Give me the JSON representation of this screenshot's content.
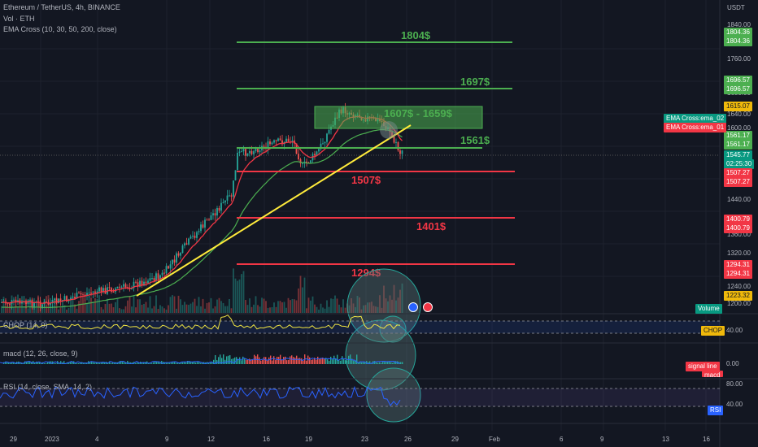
{
  "header": {
    "symbol_line": "Ethereum / TetherUS, 4h, BINANCE",
    "volume_line": "Vol · ETH",
    "ema_line": "EMA Cross (10, 30, 50, 200, close)"
  },
  "price_axis": {
    "unit": "USDT",
    "ticks": [
      "1840.00",
      "1760.00",
      "1680.00",
      "1640.00",
      "1600.00",
      "1520.00",
      "1480.00",
      "1440.00",
      "1400.00",
      "1360.00",
      "1320.00",
      "1280.00",
      "1240.00",
      "1200.00"
    ]
  },
  "price_tags": [
    {
      "text": "1804.36",
      "color": "#4caf50"
    },
    {
      "text": "1804.36",
      "color": "#4caf50"
    },
    {
      "text": "1696.57",
      "color": "#4caf50"
    },
    {
      "text": "1696.57",
      "color": "#4caf50"
    },
    {
      "text": "1615.07",
      "color": "#f0b90b"
    },
    {
      "text": "1561.17",
      "color": "#4caf50"
    },
    {
      "text": "1561.17",
      "color": "#4caf50"
    },
    {
      "text": "1545.77",
      "color": "#089981"
    },
    {
      "text": "02:25:30",
      "color": "#089981"
    },
    {
      "text": "1507.27",
      "color": "#f23645"
    },
    {
      "text": "1507.27",
      "color": "#f23645"
    },
    {
      "text": "1400.79",
      "color": "#f23645"
    },
    {
      "text": "1400.79",
      "color": "#f23645"
    },
    {
      "text": "1294.31",
      "color": "#f23645"
    },
    {
      "text": "1294.31",
      "color": "#f23645"
    },
    {
      "text": "1223.32",
      "color": "#f0b90b"
    }
  ],
  "ema_tags": [
    {
      "text": "EMA Cross:ema_02",
      "color": "#089981"
    },
    {
      "text": "EMA Cross:ema_01",
      "color": "#f23645"
    }
  ],
  "levels": [
    {
      "label": "1804$",
      "color": "#4caf50"
    },
    {
      "label": "1697$",
      "color": "#4caf50"
    },
    {
      "label": "1561$",
      "color": "#4caf50"
    },
    {
      "label": "1507$",
      "color": "#f23645"
    },
    {
      "label": "1401$",
      "color": "#f23645"
    },
    {
      "label": "1294$",
      "color": "#f23645"
    }
  ],
  "zone_label": "1607$ - 1659$",
  "volume_badge": "Volume",
  "indicators": {
    "chop": {
      "title": "CHOP (14, 0)",
      "badge": "CHOP",
      "tick": "40.00"
    },
    "macd": {
      "title": "macd (12, 26, close, 9)",
      "badges": [
        "signal line",
        "macd"
      ],
      "tick": "0.00"
    },
    "rsi": {
      "title": "RSI (14, close, SMA, 14, 2)",
      "badge": "RSI",
      "ticks": [
        "80.00",
        "40.00"
      ]
    }
  },
  "time_axis": [
    "29",
    "2023",
    "4",
    "9",
    "12",
    "16",
    "19",
    "23",
    "26",
    "29",
    "Feb",
    "6",
    "9",
    "13",
    "16"
  ],
  "colors": {
    "up": "#26a69a",
    "down": "#ef5350",
    "trend": "#ffeb3b",
    "ema_fast": "#f23645",
    "ema_slow": "#4caf50"
  }
}
